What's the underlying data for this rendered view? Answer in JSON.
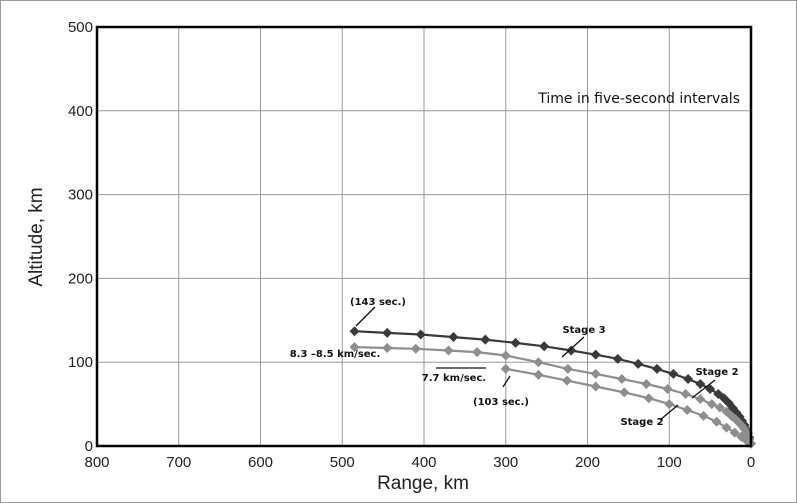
{
  "chart_data": {
    "type": "line",
    "title": "",
    "xlabel": "Range, km",
    "ylabel": "Altitude, km",
    "xlim": [
      800,
      0
    ],
    "ylim": [
      0,
      500
    ],
    "x_reversed": true,
    "grid": true,
    "xticks": [
      800,
      700,
      600,
      500,
      400,
      300,
      200,
      100,
      0
    ],
    "yticks": [
      0,
      100,
      200,
      300,
      400,
      500
    ],
    "note": "Time in five-second intervals",
    "series": [
      {
        "color": "#3a3a3a",
        "marker": "diamond",
        "x": [
          0,
          2,
          4,
          6,
          8,
          11,
          14,
          18,
          22,
          27,
          33,
          40,
          50,
          62,
          77,
          95,
          115,
          138,
          163,
          190,
          220,
          253,
          288,
          325,
          364,
          404,
          445,
          485
        ],
        "y": [
          3,
          10,
          15,
          20,
          25,
          30,
          35,
          40,
          45,
          51,
          57,
          62,
          68,
          74,
          80,
          86,
          92,
          98,
          104,
          109,
          114,
          119,
          123,
          127,
          130,
          133,
          135,
          137
        ]
      },
      {
        "color": "#8e8e8e",
        "marker": "diamond",
        "x": [
          0,
          2,
          4,
          6,
          8,
          11,
          15,
          19,
          24,
          30,
          38,
          48,
          62,
          80,
          102,
          128,
          158,
          190,
          224,
          260,
          300,
          335,
          370,
          410,
          445,
          485
        ],
        "y": [
          3,
          8,
          12,
          16,
          20,
          24,
          28,
          32,
          36,
          41,
          46,
          50,
          56,
          62,
          68,
          74,
          80,
          86,
          92,
          100,
          108,
          112,
          114,
          116,
          117,
          118
        ]
      },
      {
        "color": "#8e8e8e",
        "marker": "diamond",
        "x": [
          300,
          260,
          225,
          190,
          155,
          125,
          100,
          78,
          58,
          42,
          30,
          20,
          12,
          6,
          2
        ],
        "y": [
          92,
          85,
          78,
          71,
          64,
          57,
          50,
          43,
          36,
          29,
          22,
          16,
          11,
          7,
          4
        ]
      }
    ],
    "annotations": [
      {
        "text": "(143 sec.)",
        "x": 485,
        "y": 137
      },
      {
        "text": "8.3 –8.5 km/sec.",
        "x": 485,
        "y": 118
      },
      {
        "text": "7.7 km/sec.",
        "x": 300,
        "y": 92
      },
      {
        "text": "(103 sec.)",
        "x": 300,
        "y": 92
      },
      {
        "text": "Stage 3",
        "x": 225,
        "y": 104
      },
      {
        "text": "Stage 2",
        "x": 58,
        "y": 45
      },
      {
        "text": "Stage 2",
        "x": 75,
        "y": 36
      }
    ]
  }
}
